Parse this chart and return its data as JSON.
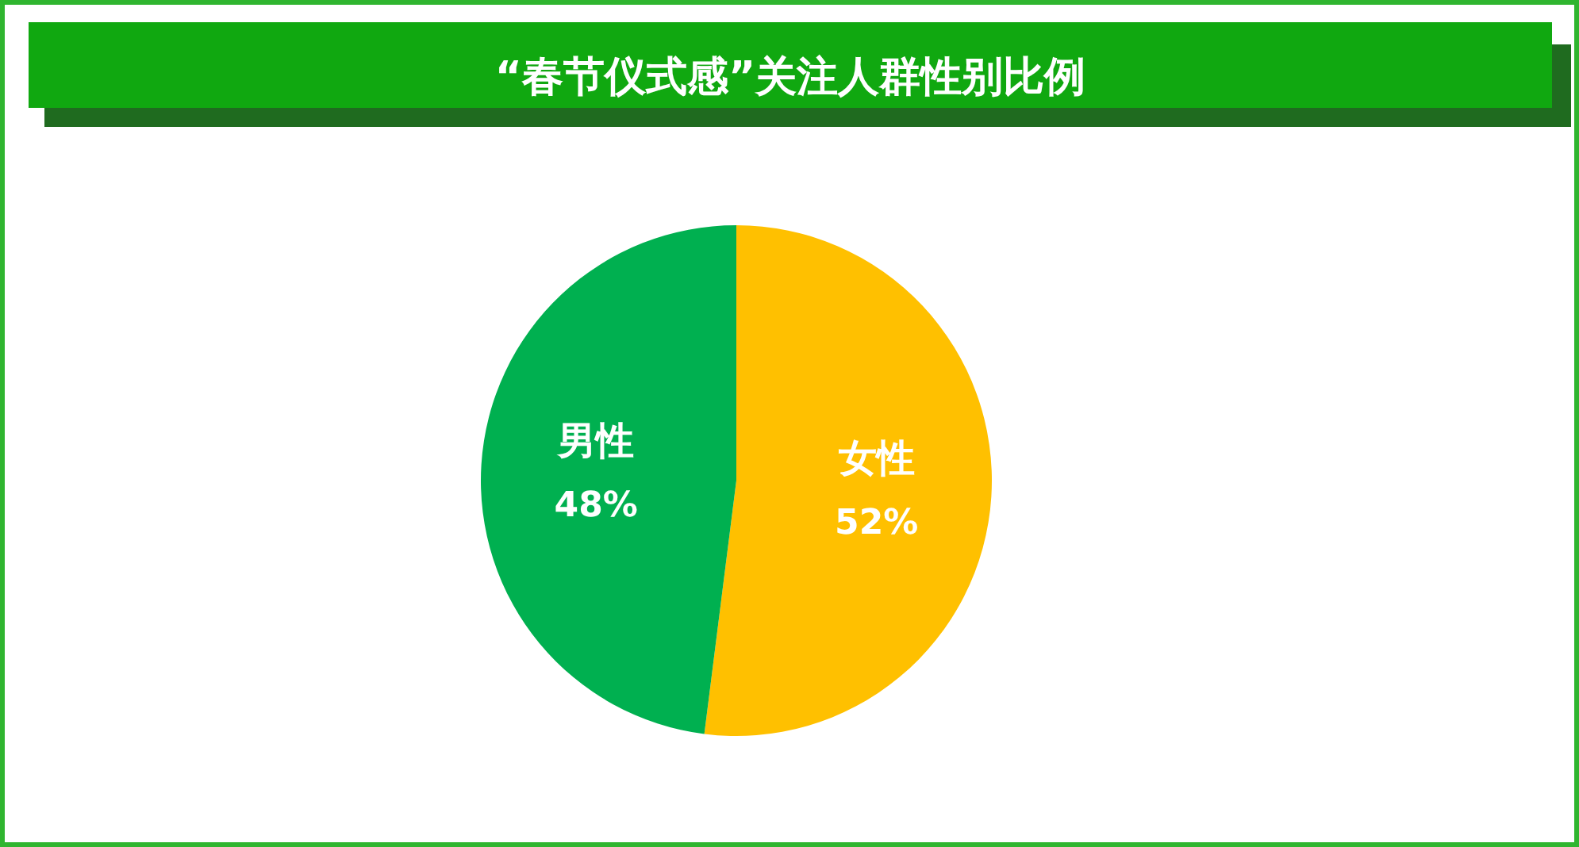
{
  "chart_data": {
    "type": "pie",
    "title": "“春节仪式感”关注人群性别比例",
    "categories": [
      "女性",
      "男性"
    ],
    "values": [
      52,
      48
    ],
    "colors": [
      "#ffc000",
      "#00b050"
    ],
    "value_labels": [
      "52%",
      "48%"
    ]
  }
}
